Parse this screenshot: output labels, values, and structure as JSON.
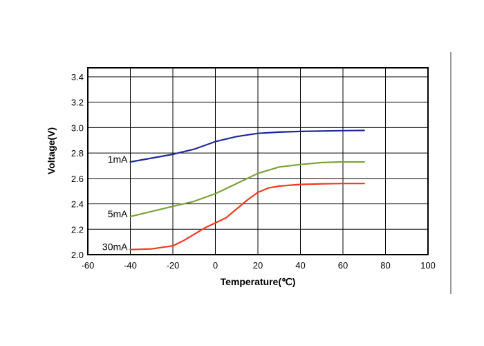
{
  "chart_data": {
    "type": "line",
    "title": "",
    "xlabel": "Temperature(℃)",
    "ylabel": "Voltage(V)",
    "xlim": [
      -60,
      100
    ],
    "ylim": [
      2.0,
      3.4
    ],
    "x_ticks": [
      "-60",
      "-40",
      "-20",
      "0",
      "20",
      "40",
      "60",
      "80",
      "100"
    ],
    "y_ticks": [
      "2.0",
      "2.2",
      "2.4",
      "2.6",
      "2.8",
      "3.0",
      "3.2",
      "3.4"
    ],
    "grid": true,
    "series": [
      {
        "name": "1mA",
        "color": "#1f2a9a",
        "x": [
          -40,
          -30,
          -20,
          -10,
          0,
          10,
          20,
          30,
          40,
          50,
          60,
          70
        ],
        "y": [
          2.73,
          2.76,
          2.79,
          2.83,
          2.89,
          2.93,
          2.955,
          2.965,
          2.97,
          2.973,
          2.976,
          2.978
        ]
      },
      {
        "name": "5mA",
        "color": "#7aa23a",
        "x": [
          -40,
          -30,
          -20,
          -10,
          0,
          10,
          20,
          30,
          40,
          50,
          60,
          70
        ],
        "y": [
          2.3,
          2.34,
          2.38,
          2.42,
          2.48,
          2.56,
          2.64,
          2.69,
          2.71,
          2.725,
          2.73,
          2.73
        ]
      },
      {
        "name": "30mA",
        "color": "#f0391e",
        "x": [
          -40,
          -30,
          -20,
          -15,
          -10,
          -5,
          0,
          5,
          10,
          15,
          20,
          25,
          30,
          40,
          50,
          60,
          70
        ],
        "y": [
          2.04,
          2.045,
          2.07,
          2.11,
          2.16,
          2.21,
          2.25,
          2.29,
          2.36,
          2.43,
          2.49,
          2.525,
          2.54,
          2.553,
          2.558,
          2.56,
          2.56
        ]
      }
    ]
  }
}
